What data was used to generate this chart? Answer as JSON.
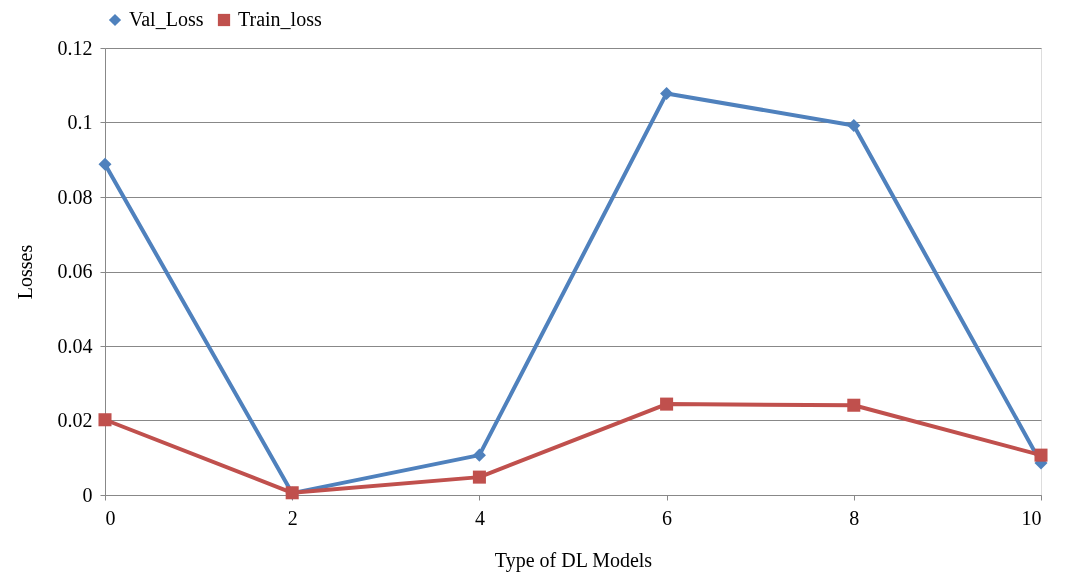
{
  "chart_data": {
    "type": "line",
    "xlabel": "Type of  DL Models",
    "ylabel": "Losses",
    "x": [
      0,
      2,
      4,
      6,
      8,
      10
    ],
    "series": [
      {
        "name": "Val_Loss",
        "color": "#4f81bd",
        "marker": "diamond",
        "values": [
          0.0888,
          0.0005,
          0.0107,
          0.1078,
          0.0992,
          0.0086
        ]
      },
      {
        "name": "Train_loss",
        "color": "#c0504d",
        "marker": "square",
        "values": [
          0.0202,
          0.0006,
          0.0048,
          0.0244,
          0.0241,
          0.0107
        ]
      }
    ],
    "xlim": [
      0,
      10
    ],
    "xticks": [
      0,
      2,
      4,
      6,
      8,
      10
    ],
    "ylim": [
      0,
      0.12
    ],
    "yticks": [
      0,
      0.02,
      0.04,
      0.06,
      0.08,
      0.1,
      0.12
    ],
    "grid": "y",
    "legend": "top",
    "line_style": "solid"
  }
}
